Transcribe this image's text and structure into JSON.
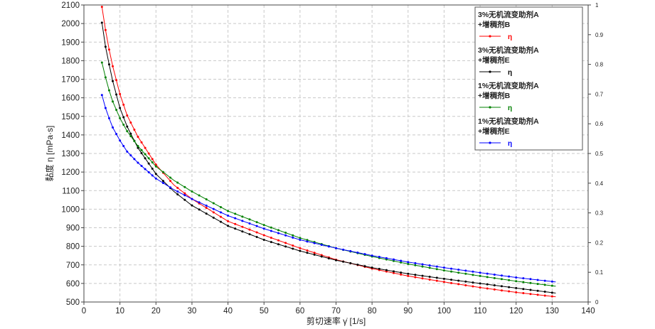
{
  "chart_data": {
    "type": "line",
    "xlabel": "剪切速率 γ̇ [1/s]",
    "ylabel": "黏度 η [mPa·s]",
    "xlim": [
      0,
      140
    ],
    "ylim": [
      500,
      2100
    ],
    "y2lim": [
      0,
      1
    ],
    "grid": true,
    "legend_position": "top-right",
    "x_ticks": [
      "0",
      "10",
      "20",
      "30",
      "40",
      "50",
      "60",
      "70",
      "80",
      "90",
      "100",
      "110",
      "120",
      "130",
      "140"
    ],
    "y_ticks": [
      "500",
      "600",
      "700",
      "800",
      "900",
      "1000",
      "1100",
      "1200",
      "1300",
      "1400",
      "1500",
      "1600",
      "1700",
      "1800",
      "1900",
      "2000",
      "2100"
    ],
    "y2_ticks": [
      "0",
      "0.1",
      "0.2",
      "0.3",
      "0.4",
      "0.5",
      "0.6",
      "0.7",
      "0.8",
      "0.9",
      "1"
    ],
    "x_range_data": [
      5,
      131
    ],
    "series": [
      {
        "name_line1": "3%无机流变助剂A",
        "name_line2": "+增稠剂B",
        "symbol": "η",
        "color": "#ff0000",
        "points": [
          [
            5,
            2090
          ],
          [
            6,
            1965
          ],
          [
            7,
            1860
          ],
          [
            8,
            1770
          ],
          [
            10,
            1620
          ],
          [
            12,
            1505
          ],
          [
            15,
            1390
          ],
          [
            20,
            1240
          ],
          [
            25,
            1130
          ],
          [
            30,
            1055
          ],
          [
            40,
            935
          ],
          [
            50,
            860
          ],
          [
            60,
            790
          ],
          [
            70,
            728
          ],
          [
            80,
            680
          ],
          [
            90,
            640
          ],
          [
            100,
            608
          ],
          [
            110,
            578
          ],
          [
            120,
            552
          ],
          [
            131,
            528
          ]
        ]
      },
      {
        "name_line1": "3%无机流变助剂A",
        "name_line2": "+增稠剂E",
        "symbol": "η",
        "color": "#000000",
        "points": [
          [
            5,
            2005
          ],
          [
            6,
            1875
          ],
          [
            7,
            1780
          ],
          [
            8,
            1690
          ],
          [
            10,
            1545
          ],
          [
            12,
            1445
          ],
          [
            15,
            1330
          ],
          [
            20,
            1190
          ],
          [
            25,
            1095
          ],
          [
            30,
            1020
          ],
          [
            40,
            910
          ],
          [
            50,
            835
          ],
          [
            60,
            775
          ],
          [
            70,
            725
          ],
          [
            80,
            685
          ],
          [
            90,
            652
          ],
          [
            100,
            625
          ],
          [
            110,
            600
          ],
          [
            120,
            575
          ],
          [
            131,
            548
          ]
        ]
      },
      {
        "name_line1": "1%无机流变助剂A",
        "name_line2": "+增稠剂B",
        "symbol": "η",
        "color": "#008000",
        "points": [
          [
            5,
            1790
          ],
          [
            6,
            1710
          ],
          [
            7,
            1640
          ],
          [
            8,
            1580
          ],
          [
            10,
            1490
          ],
          [
            12,
            1420
          ],
          [
            15,
            1340
          ],
          [
            20,
            1230
          ],
          [
            25,
            1155
          ],
          [
            30,
            1095
          ],
          [
            40,
            990
          ],
          [
            50,
            915
          ],
          [
            60,
            845
          ],
          [
            70,
            790
          ],
          [
            80,
            745
          ],
          [
            90,
            705
          ],
          [
            100,
            670
          ],
          [
            110,
            640
          ],
          [
            120,
            612
          ],
          [
            131,
            585
          ]
        ]
      },
      {
        "name_line1": "1%无机流变助剂A",
        "name_line2": "+增稠剂E",
        "symbol": "η",
        "color": "#0000ff",
        "points": [
          [
            5,
            1615
          ],
          [
            6,
            1545
          ],
          [
            7,
            1490
          ],
          [
            8,
            1440
          ],
          [
            10,
            1370
          ],
          [
            12,
            1310
          ],
          [
            15,
            1250
          ],
          [
            20,
            1165
          ],
          [
            25,
            1105
          ],
          [
            30,
            1055
          ],
          [
            40,
            965
          ],
          [
            50,
            895
          ],
          [
            60,
            835
          ],
          [
            70,
            790
          ],
          [
            80,
            750
          ],
          [
            90,
            715
          ],
          [
            100,
            685
          ],
          [
            110,
            658
          ],
          [
            120,
            632
          ],
          [
            131,
            608
          ]
        ]
      }
    ]
  }
}
